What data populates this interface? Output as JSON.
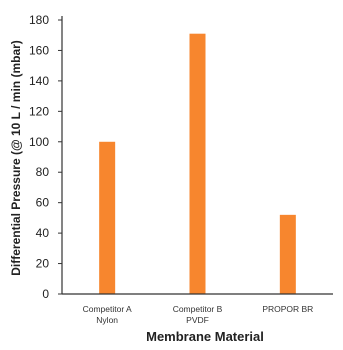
{
  "chart_data": {
    "type": "bar",
    "categories": [
      [
        "Competitor A",
        "Nylon"
      ],
      [
        "Competitor B",
        "PVDF"
      ],
      [
        "PROPOR BR"
      ]
    ],
    "values": [
      100,
      171,
      52
    ],
    "xlabel": "Membrane Material",
    "ylabel": "Differential Pressure (@ 10 L / min (mbar)",
    "ylim": [
      0,
      180
    ],
    "yticks": [
      0,
      20,
      40,
      60,
      80,
      100,
      120,
      140,
      160,
      180
    ],
    "grid": false,
    "bar_color": "#F7862E",
    "axis_color": "#333333"
  }
}
